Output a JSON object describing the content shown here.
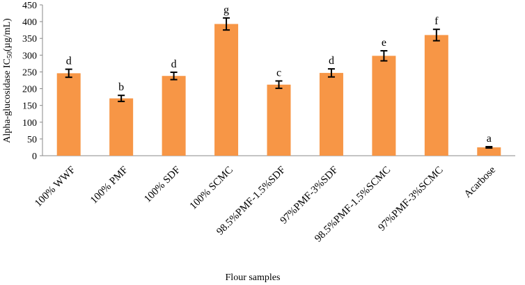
{
  "chart_data": {
    "type": "bar",
    "title": "",
    "xlabel": "Flour samples",
    "ylabel_main": "Alpha-glucosidase IC",
    "ylabel_sub": "50",
    "ylabel_unit": "(µg/mL)",
    "ylim": [
      0,
      450
    ],
    "yticks": [
      0,
      50,
      100,
      150,
      200,
      250,
      300,
      350,
      400,
      450
    ],
    "categories": [
      "100% WWF",
      "100% PMF",
      "100% SDF",
      "100% SCMC",
      "98.5%PMF-1.5%SDF",
      "97%PMF-3%SDF",
      "98.5%PMF-1.5%SCMC",
      "97%PMF-3%SCMC",
      "Acarbose"
    ],
    "values": [
      246,
      171,
      238,
      393,
      212,
      247,
      298,
      360,
      25
    ],
    "errors": [
      12,
      9,
      11,
      18,
      11,
      12,
      15,
      17,
      2
    ],
    "significance_letters": [
      "d",
      "b",
      "d",
      "g",
      "c",
      "d",
      "e",
      "f",
      "a"
    ],
    "bar_color": "#F79646",
    "grid": false,
    "legend": "none"
  }
}
